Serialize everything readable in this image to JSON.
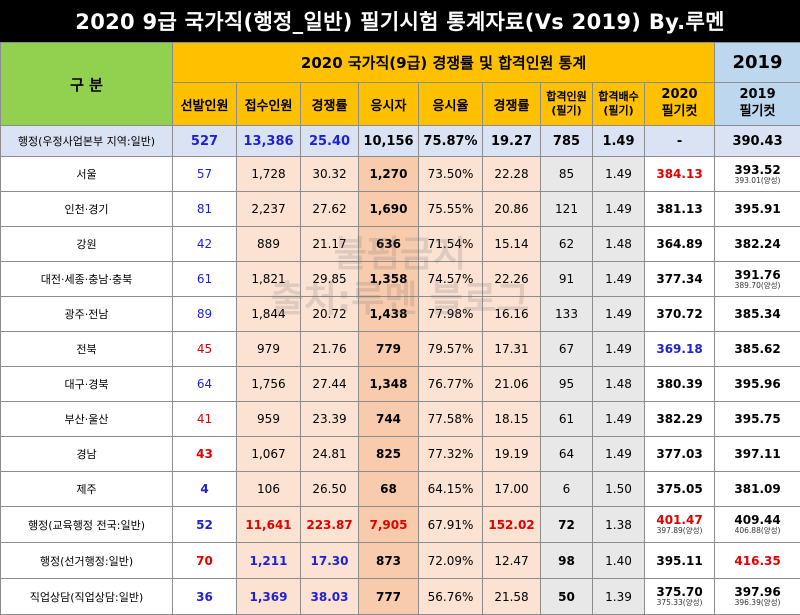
{
  "title": "2020 9급 국가직(행정_일반) 필기시험 통계자료(Vs 2019) By.루멘",
  "header": {
    "category": "구    분",
    "section2020": "2020 국가직(9급) 경쟁률 및 합격인원 통계",
    "section2019": "2019",
    "columns": [
      "선발인원",
      "접수인원",
      "경쟁률",
      "응시자",
      "응시율",
      "경쟁률"
    ],
    "pass_count": [
      "합격인원",
      "(필기)"
    ],
    "pass_ratio": [
      "합격배수",
      "(필기)"
    ],
    "cut2020": [
      "2020",
      "필기컷"
    ],
    "cut2019": [
      "2019",
      "필기컷"
    ]
  },
  "total": {
    "label": "행정(우정사업본부 지역:일반)",
    "selected": "527",
    "applied": "13,386",
    "comp": "25.40",
    "taker": "10,156",
    "rate": "75.87%",
    "comp2": "19.27",
    "passed": "785",
    "ratio": "1.49",
    "cut2020": "-",
    "cut2019": "390.43"
  },
  "rows": [
    {
      "label": "서울",
      "selected": "57",
      "applied": "1,728",
      "comp": "30.32",
      "taker": "1,270",
      "rate": "73.50%",
      "comp2": "22.28",
      "passed": "85",
      "ratio": "1.49",
      "cut2020": "384.13",
      "cut2019": "393.52",
      "cut2019_note": "393.01(양성)"
    },
    {
      "label": "인천·경기",
      "selected": "81",
      "applied": "2,237",
      "comp": "27.62",
      "taker": "1,690",
      "rate": "75.55%",
      "comp2": "20.86",
      "passed": "121",
      "ratio": "1.49",
      "cut2020": "381.13",
      "cut2019": "395.91"
    },
    {
      "label": "강원",
      "selected": "42",
      "applied": "889",
      "comp": "21.17",
      "taker": "636",
      "rate": "71.54%",
      "comp2": "15.14",
      "passed": "62",
      "ratio": "1.48",
      "cut2020": "364.89",
      "cut2019": "382.24"
    },
    {
      "label": "대전·세종·충남·충북",
      "selected": "61",
      "applied": "1,821",
      "comp": "29.85",
      "taker": "1,358",
      "rate": "74.57%",
      "comp2": "22.26",
      "passed": "91",
      "ratio": "1.49",
      "cut2020": "377.34",
      "cut2019": "391.76",
      "cut2019_note": "389.70(양성)"
    },
    {
      "label": "광주·전남",
      "selected": "89",
      "applied": "1,844",
      "comp": "20.72",
      "taker": "1,438",
      "rate": "77.98%",
      "comp2": "16.16",
      "passed": "133",
      "ratio": "1.49",
      "cut2020": "370.72",
      "cut2019": "385.34"
    },
    {
      "label": "전북",
      "selected": "45",
      "applied": "979",
      "comp": "21.76",
      "taker": "779",
      "rate": "79.57%",
      "comp2": "17.31",
      "passed": "67",
      "ratio": "1.49",
      "cut2020": "369.18",
      "cut2019": "385.62"
    },
    {
      "label": "대구·경북",
      "selected": "64",
      "applied": "1,756",
      "comp": "27.44",
      "taker": "1,348",
      "rate": "76.77%",
      "comp2": "21.06",
      "passed": "95",
      "ratio": "1.48",
      "cut2020": "380.39",
      "cut2019": "395.96"
    },
    {
      "label": "부산·울산",
      "selected": "41",
      "applied": "959",
      "comp": "23.39",
      "taker": "744",
      "rate": "77.58%",
      "comp2": "18.15",
      "passed": "61",
      "ratio": "1.49",
      "cut2020": "382.29",
      "cut2019": "395.75"
    },
    {
      "label": "경남",
      "selected": "43",
      "applied": "1,067",
      "comp": "24.81",
      "taker": "825",
      "rate": "77.32%",
      "comp2": "19.19",
      "passed": "64",
      "ratio": "1.49",
      "cut2020": "377.03",
      "cut2019": "397.11"
    },
    {
      "label": "제주",
      "selected": "4",
      "applied": "106",
      "comp": "26.50",
      "taker": "68",
      "rate": "64.15%",
      "comp2": "17.00",
      "passed": "6",
      "ratio": "1.50",
      "cut2020": "375.05",
      "cut2019": "381.09"
    }
  ],
  "extra": [
    {
      "label": "행정(교육행정 전국:일반)",
      "selected": "52",
      "applied": "11,641",
      "comp": "223.87",
      "taker": "7,905",
      "rate": "67.91%",
      "comp2": "152.02",
      "passed": "72",
      "ratio": "1.38",
      "cut2020": "401.47",
      "cut2020_note": "397.89(양성)",
      "cut2019": "409.44",
      "cut2019_note": "406.88(양성)"
    },
    {
      "label": "행정(선거행정:일반)",
      "selected": "70",
      "applied": "1,211",
      "comp": "17.30",
      "taker": "873",
      "rate": "72.09%",
      "comp2": "12.47",
      "passed": "98",
      "ratio": "1.40",
      "cut2020": "395.11",
      "cut2019": "416.35"
    },
    {
      "label": "직업상담(직업상담:일반)",
      "selected": "36",
      "applied": "1,369",
      "comp": "38.03",
      "taker": "777",
      "rate": "56.76%",
      "comp2": "21.58",
      "passed": "50",
      "ratio": "1.39",
      "cut2020": "375.70",
      "cut2020_note": "375.33(양성)",
      "cut2019": "397.96",
      "cut2019_note": "396.39(양성)"
    }
  ],
  "watermark": [
    "불펌금지",
    "출처:루멘 블로그"
  ],
  "colors": {
    "blue": "#1f1fd6",
    "red": "#e00000",
    "green": "#92d050",
    "gold": "#ffc000",
    "light_blue": "#bdd7ee"
  }
}
